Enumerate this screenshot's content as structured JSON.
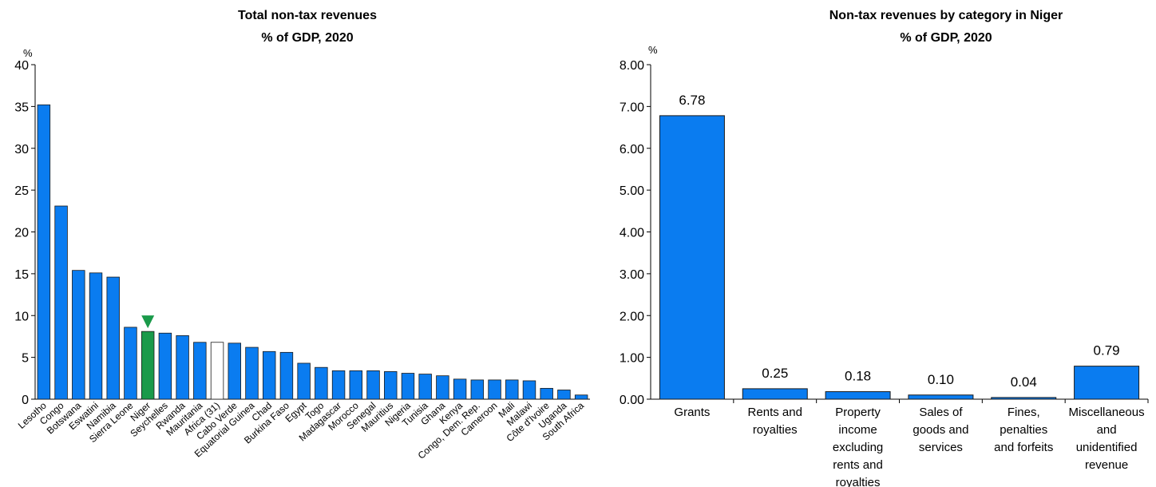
{
  "colors": {
    "bar": "#0a7cf0",
    "highlight": "#1a9a4a",
    "average": "#ffffff",
    "outline": "#1a1a1a",
    "axis": "#000000"
  },
  "chart_data": [
    {
      "type": "bar",
      "title": "Total non-tax revenues",
      "subtitle": "% of GDP, 2020",
      "ylabel": "%",
      "ylim": [
        0,
        40
      ],
      "yticks": [
        "0",
        "5",
        "10",
        "15",
        "20",
        "25",
        "30",
        "35",
        "40"
      ],
      "highlight": "Niger",
      "average": "Africa (31)",
      "marker": "triangle-down-icon",
      "categories": [
        "Lesotho",
        "Congo",
        "Botswana",
        "Eswatini",
        "Namibia",
        "Sierra Leone",
        "Niger",
        "Seychelles",
        "Rwanda",
        "Mauritania",
        "Africa (31)",
        "Cabo Verde",
        "Equatorial Guinea",
        "Chad",
        "Burkina Faso",
        "Egypt",
        "Togo",
        "Madagascar",
        "Morocco",
        "Senegal",
        "Mauritius",
        "Nigeria",
        "Tunisia",
        "Ghana",
        "Kenya",
        "Congo, Dem. Rep.",
        "Cameroon",
        "Mali",
        "Malawi",
        "Côte d'Ivoire",
        "Uganda",
        "South Africa"
      ],
      "values": [
        35.2,
        23.1,
        15.4,
        15.1,
        14.6,
        8.6,
        8.1,
        7.9,
        7.6,
        6.8,
        6.8,
        6.7,
        6.2,
        5.7,
        5.6,
        4.3,
        3.8,
        3.4,
        3.4,
        3.4,
        3.3,
        3.1,
        3.0,
        2.8,
        2.4,
        2.3,
        2.3,
        2.3,
        2.2,
        1.3,
        1.1,
        0.5
      ]
    },
    {
      "type": "bar",
      "title": "Non-tax revenues by category in Niger",
      "subtitle": "% of GDP, 2020",
      "ylabel": "%",
      "ylim": [
        0,
        8
      ],
      "yticks": [
        "0.00",
        "1.00",
        "2.00",
        "3.00",
        "4.00",
        "5.00",
        "6.00",
        "7.00",
        "8.00"
      ],
      "categories": [
        [
          "Grants"
        ],
        [
          "Rents and",
          "royalties"
        ],
        [
          "Property",
          "income",
          "excluding",
          "rents and",
          "royalties"
        ],
        [
          "Sales of",
          "goods and",
          "services"
        ],
        [
          "Fines,",
          "penalties",
          "and forfeits"
        ],
        [
          "Miscellaneous",
          "and",
          "unidentified",
          "revenue"
        ]
      ],
      "values": [
        6.78,
        0.25,
        0.18,
        0.1,
        0.04,
        0.79
      ],
      "data_labels": [
        "6.78",
        "0.25",
        "0.18",
        "0.10",
        "0.04",
        "0.79"
      ]
    }
  ]
}
